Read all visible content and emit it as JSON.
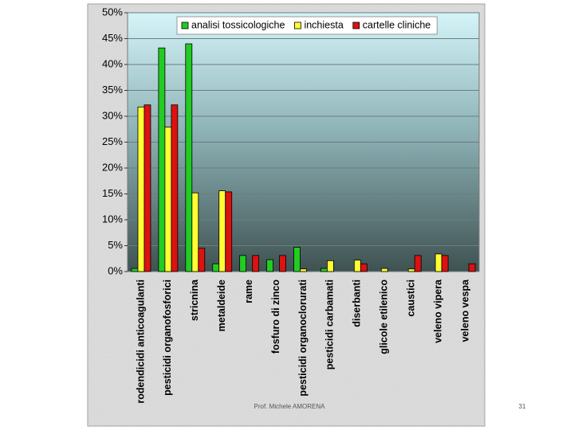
{
  "chart_data": {
    "type": "bar",
    "categories": [
      "rodendicidi anticoagulanti",
      "pesticidi organofosforici",
      "stricnina",
      "metaldeide",
      "rame",
      "fosfuro di zinco",
      "pesticidi organoclorurati",
      "pesticidi carbamati",
      "diserbanti",
      "glicole etilenico",
      "caustici",
      "veleno vipera",
      "veleno vespa"
    ],
    "series": [
      {
        "name": "analisi tossicologiche",
        "color": "#22cc22",
        "values": [
          0.6,
          43.2,
          44,
          1.5,
          3.1,
          2.3,
          4.7,
          0.6,
          0,
          0,
          0,
          0,
          0
        ]
      },
      {
        "name": "inchiesta",
        "color": "#ffff33",
        "values": [
          31.8,
          27.9,
          15.2,
          15.6,
          0,
          0,
          0.5,
          2.1,
          2.2,
          0.6,
          0.5,
          3.4,
          0
        ]
      },
      {
        "name": "cartelle cliniche",
        "color": "#dd1111",
        "values": [
          32.2,
          32.2,
          4.5,
          15.4,
          3.1,
          3.1,
          0,
          0,
          1.5,
          0,
          3.1,
          3.1,
          1.5
        ]
      }
    ],
    "ylim": [
      0,
      50
    ],
    "yticks": [
      {
        "value": 0,
        "label": "0%"
      },
      {
        "value": 5,
        "label": "5%"
      },
      {
        "value": 10,
        "label": "10%"
      },
      {
        "value": 15,
        "label": "15%"
      },
      {
        "value": 20,
        "label": "20%"
      },
      {
        "value": 25,
        "label": "25%"
      },
      {
        "value": 30,
        "label": "30%"
      },
      {
        "value": 35,
        "label": "35%"
      },
      {
        "value": 40,
        "label": "40%"
      },
      {
        "value": 45,
        "label": "45%"
      },
      {
        "value": 50,
        "label": "50%"
      }
    ],
    "grid": true,
    "legend": "top"
  },
  "footer": {
    "author": "Prof. Michele AMORENA",
    "page": "31"
  }
}
